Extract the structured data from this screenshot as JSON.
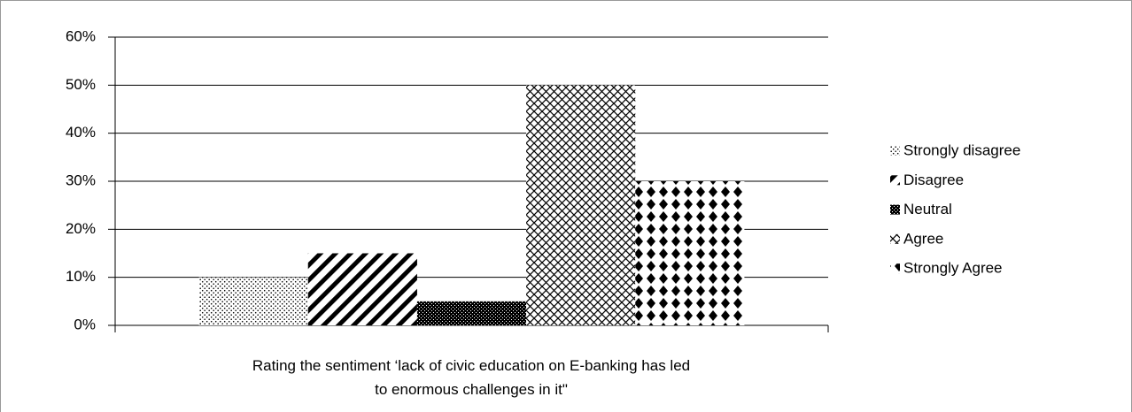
{
  "chart_data": {
    "type": "bar",
    "categories": [
      null
    ],
    "x_label": "Rating the  sentiment ‘lack of civic education on E-banking has led to enormous challenges in it\"",
    "series": [
      {
        "name": "Strongly disagree",
        "color": "#000000",
        "values": [
          10
        ]
      },
      {
        "name": "Disagree",
        "color": "#000000",
        "values": [
          15
        ]
      },
      {
        "name": "Neutral",
        "color": "#000000",
        "values": [
          5
        ]
      },
      {
        "name": "Agree",
        "color": "#000000",
        "values": [
          50
        ]
      },
      {
        "name": "Strongly Agree",
        "color": "#000000",
        "values": [
          30
        ]
      }
    ],
    "ylim": [
      0,
      60
    ],
    "yticks": [
      {
        "value": 0,
        "label": "0%"
      },
      {
        "value": 10,
        "label": "10%"
      },
      {
        "value": 20,
        "label": "20%"
      },
      {
        "value": 30,
        "label": "30%"
      },
      {
        "value": 40,
        "label": "40%"
      },
      {
        "value": 50,
        "label": "50%"
      },
      {
        "value": 60,
        "label": "60%"
      }
    ],
    "grid": true,
    "legend": "right"
  }
}
